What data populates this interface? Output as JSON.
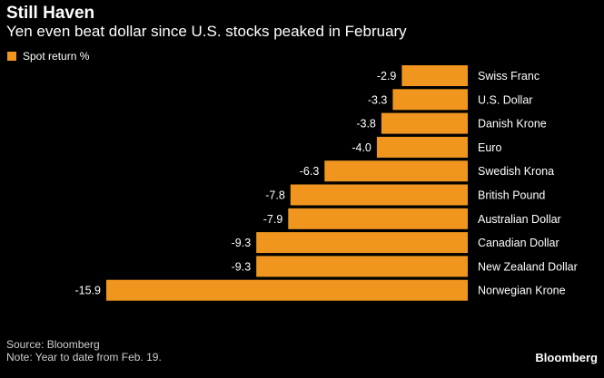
{
  "header": {
    "title": "Still Haven",
    "subtitle": "Yen even beat dollar since U.S. stocks peaked in February"
  },
  "legend": {
    "label": "Spot return %"
  },
  "footer": {
    "source": "Source: Bloomberg",
    "note": "Note: Year to date from Feb. 19.",
    "brand": "Bloomberg"
  },
  "colors": {
    "bar": "#f0961e",
    "background": "#000000",
    "text": "#ffffff"
  },
  "chart_data": {
    "type": "bar",
    "orientation": "horizontal",
    "title": "Still Haven",
    "subtitle": "Yen even beat dollar since U.S. stocks peaked in February",
    "series": [
      {
        "name": "Spot return %",
        "values": [
          -2.9,
          -3.3,
          -3.8,
          -4.0,
          -6.3,
          -7.8,
          -7.9,
          -9.3,
          -9.3,
          -15.9
        ]
      }
    ],
    "categories": [
      "Swiss Franc",
      "U.S. Dollar",
      "Danish Krone",
      "Euro",
      "Swedish Krona",
      "British Pound",
      "Australian Dollar",
      "Canadian Dollar",
      "New Zealand Dollar",
      "Norwegian Krone"
    ],
    "value_labels": [
      "-2.9",
      "-3.3",
      "-3.8",
      "-4.0",
      "-6.3",
      "-7.8",
      "-7.9",
      "-9.3",
      "-9.3",
      "-15.9"
    ],
    "xlim": [
      -15.9,
      0
    ],
    "legend_position": "top-left",
    "grid": false
  }
}
